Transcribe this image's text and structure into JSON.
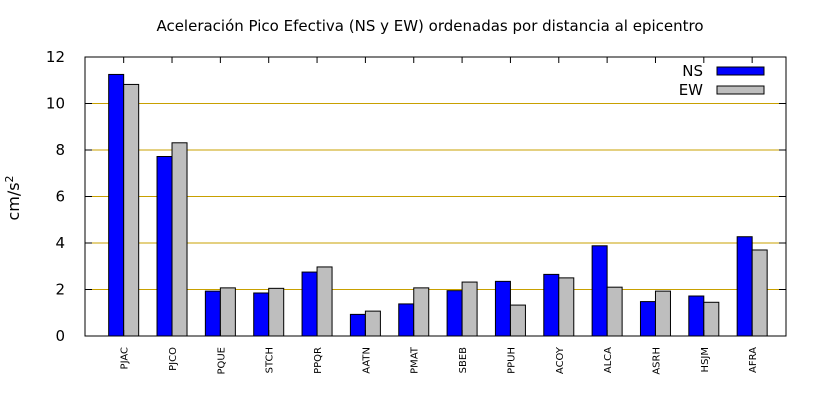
{
  "chart_data": {
    "type": "bar",
    "title": "Aceleración Pico Efectiva (NS y EW) ordenadas por distancia al epicentro",
    "xlabel": "",
    "ylabel": "cm/s",
    "ylabel_superscript": "2",
    "ylim": [
      0,
      12
    ],
    "yticks": [
      "0",
      "2",
      "4",
      "6",
      "8",
      "10",
      "12"
    ],
    "grid": "horizontal",
    "grid_color": "#c8a000",
    "legend_position": "top-right",
    "categories": [
      "PJAC",
      "PJCO",
      "PQUE",
      "STCH",
      "PPQR",
      "AATN",
      "PMAT",
      "SBEB",
      "PPUH",
      "ACOY",
      "ALCA",
      "ASRH",
      "HSJM",
      "AFRA"
    ],
    "series": [
      {
        "name": "NS",
        "color": "#0000ff",
        "values": [
          11.25,
          7.72,
          1.93,
          1.85,
          2.75,
          0.93,
          1.38,
          1.95,
          2.35,
          2.65,
          3.88,
          1.48,
          1.72,
          4.27
        ]
      },
      {
        "name": "EW",
        "color": "#bebebe",
        "values": [
          10.82,
          8.31,
          2.07,
          2.05,
          2.97,
          1.07,
          2.07,
          2.32,
          1.33,
          2.5,
          2.1,
          1.93,
          1.45,
          3.7
        ]
      }
    ]
  }
}
